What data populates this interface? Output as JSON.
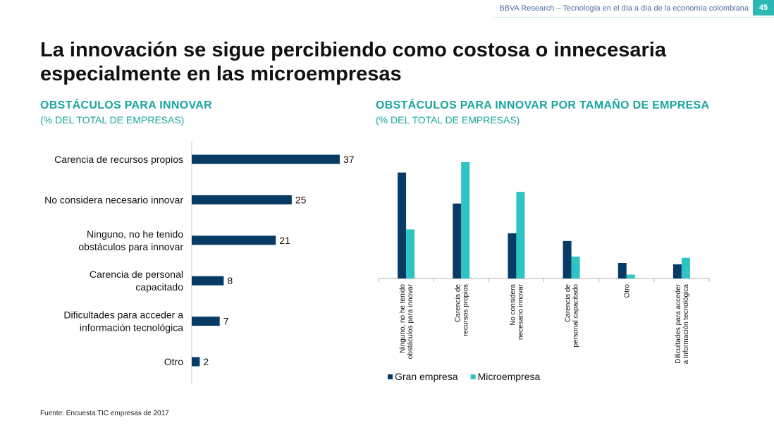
{
  "header": {
    "text": "BBVA Research – Tecnología en el día a día de la economía colombiana",
    "page_number": "45"
  },
  "title": "La innovación se sigue percibiendo como costosa o innecesaria especialmente en las microempresas",
  "left_chart": {
    "title": "OBSTÁCULOS PARA INNOVAR",
    "subtitle": "(% DEL TOTAL DE EMPRESAS)"
  },
  "right_chart": {
    "title": "OBSTÁCULOS PARA INNOVAR POR TAMAÑO DE EMPRESA",
    "subtitle": "(% DEL TOTAL DE EMPRESAS)"
  },
  "source": "Fuente: Encuesta TIC empresas de 2017",
  "colors": {
    "dark_blue": "#073b66",
    "teal": "#2ec4c4",
    "accent": "#1aa59e"
  },
  "chart_data": [
    {
      "type": "bar",
      "orientation": "horizontal",
      "categories": [
        [
          "Carencia de recursos propios"
        ],
        [
          "No considera necesario innovar"
        ],
        [
          "Ninguno, no he tenido",
          "obstáculos para innovar"
        ],
        [
          "Carencia de personal",
          "capacitado"
        ],
        [
          "Dificultades para acceder a",
          "información tecnológica"
        ],
        [
          "Otro"
        ]
      ],
      "values": [
        37,
        25,
        21,
        8,
        7,
        2
      ],
      "data_labels": [
        "37",
        "25",
        "21",
        "8",
        "7",
        "2"
      ],
      "xlim": [
        0,
        37
      ],
      "color": "#073b66"
    },
    {
      "type": "bar",
      "categories": [
        [
          "Ninguno, no he tenido",
          "obstáculos para innovar"
        ],
        [
          "Carencia de",
          "recursos propios"
        ],
        [
          "No considera",
          "necesario innovar"
        ],
        [
          "Carencia de",
          "personal capacitado"
        ],
        [
          "Otro"
        ],
        [
          "Dificultades para acceder",
          "a información tecnológica"
        ]
      ],
      "series": [
        {
          "name": "Gran empresa",
          "color": "#073b66",
          "values": [
            41,
            29,
            17.5,
            14.5,
            6,
            5.5
          ]
        },
        {
          "name": "Microempresa",
          "color": "#2ec4c4",
          "values": [
            19,
            45,
            33.5,
            8.5,
            1.5,
            8
          ]
        }
      ],
      "ylim": [
        0,
        45
      ],
      "legend": "bottom-left"
    }
  ]
}
